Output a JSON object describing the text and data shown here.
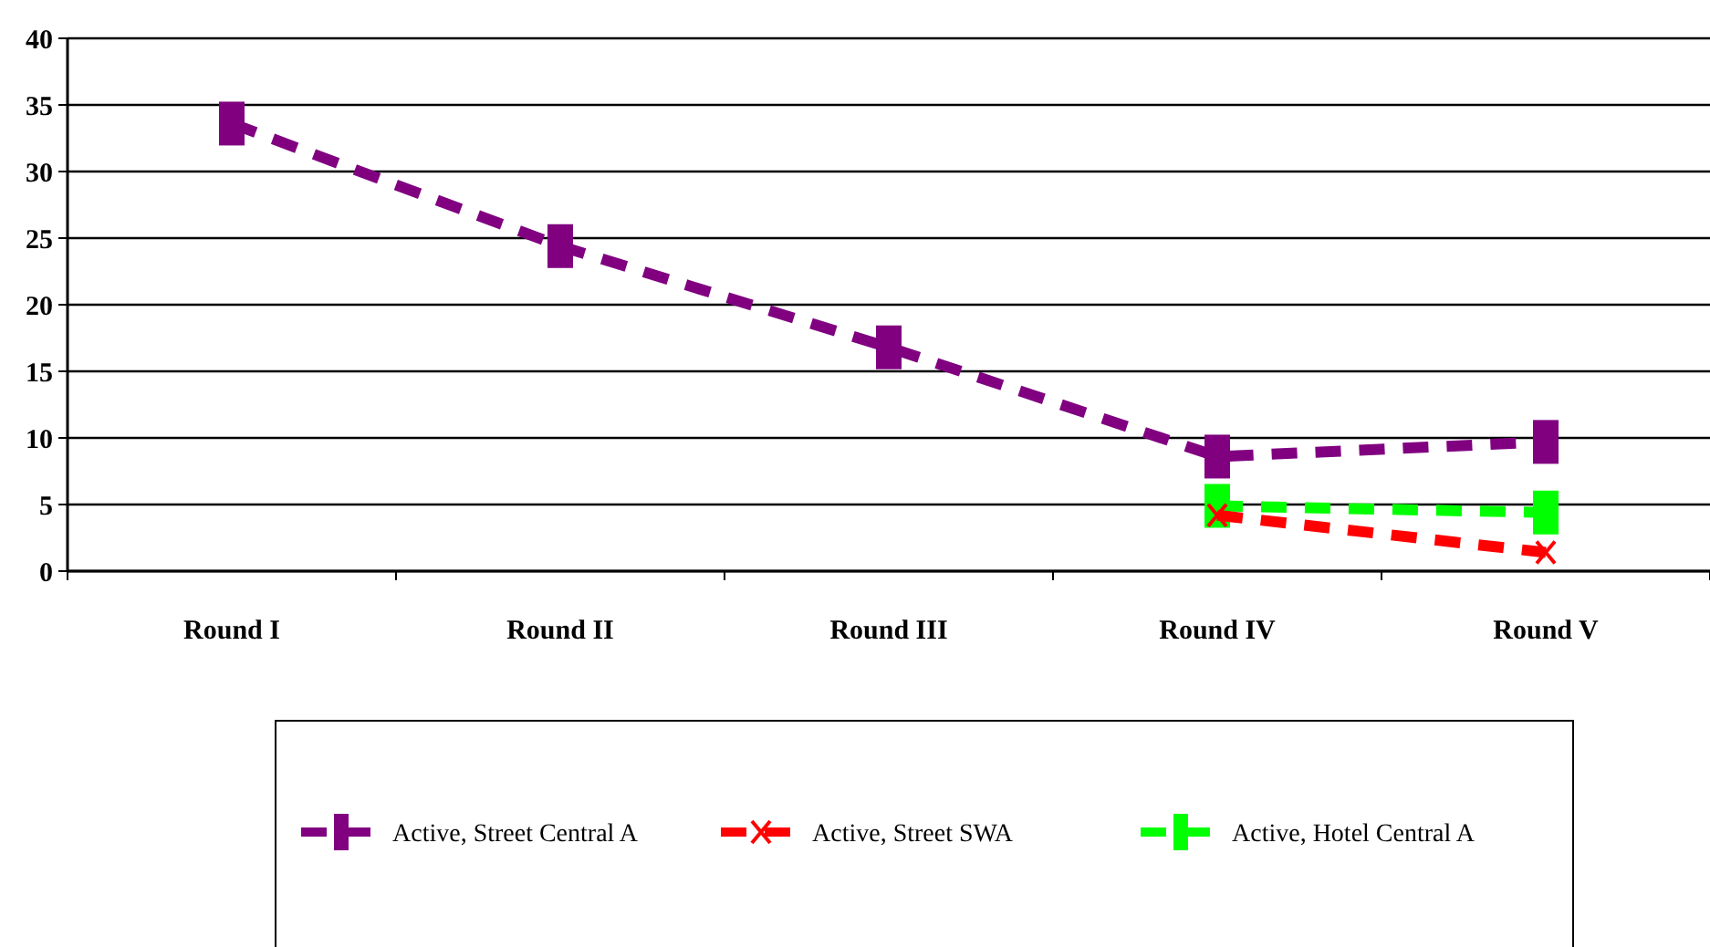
{
  "chart_data": {
    "type": "line",
    "categories": [
      "Round I",
      "Round II",
      "Round III",
      "Round IV",
      "Round V"
    ],
    "series": [
      {
        "name": "Active, Street Central A",
        "color": "#800080",
        "values": [
          33.6,
          24.4,
          16.8,
          8.6,
          9.7
        ],
        "marker": "square"
      },
      {
        "name": "Active, Street SWA",
        "color": "#ff0000",
        "values": [
          null,
          null,
          null,
          4.2,
          1.4
        ],
        "marker": "cross"
      },
      {
        "name": "Active, Hotel Central A",
        "color": "#00ff00",
        "values": [
          null,
          null,
          null,
          4.9,
          4.4
        ],
        "marker": "square"
      }
    ],
    "ylim": [
      0,
      40
    ],
    "yticks": [
      0,
      5,
      10,
      15,
      20,
      25,
      30,
      35,
      40
    ],
    "grid": "y",
    "legend": "bottom",
    "line_style": "dashed"
  }
}
